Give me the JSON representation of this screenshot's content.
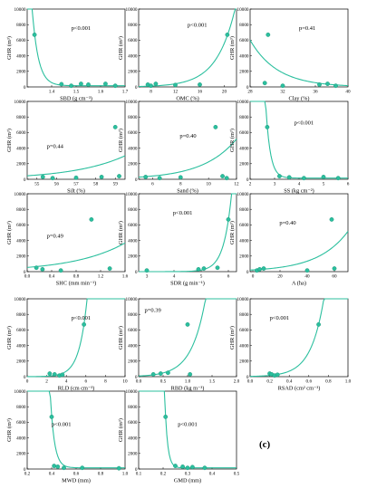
{
  "panel_label": "(c)",
  "colors": {
    "series": "#2bbf9e",
    "series_edge": "#1a8f74",
    "axes": "#000000"
  },
  "chart_data": [
    {
      "type": "scatter",
      "id": "sbd",
      "xlabel": "SBD (g cm⁻³)",
      "ylabel": "GHR (m³)",
      "xlim": [
        1.3,
        1.7
      ],
      "ylim": [
        0,
        10000
      ],
      "xticks": [
        1.4,
        1.5,
        1.6,
        1.7
      ],
      "xtick_labels": [
        "1.4",
        "1.5",
        "1.6",
        "1.7"
      ],
      "yticks": [
        0,
        2000,
        4000,
        6000,
        8000,
        10000
      ],
      "annotation": "p<0.001",
      "points": [
        [
          1.33,
          6700
        ],
        [
          1.44,
          350
        ],
        [
          1.48,
          150
        ],
        [
          1.52,
          400
        ],
        [
          1.55,
          300
        ],
        [
          1.62,
          400
        ],
        [
          1.66,
          150
        ]
      ],
      "fit": {
        "kind": "exp_decay",
        "a": 6700,
        "b": 40,
        "x0": 1.33,
        "c": 150
      }
    },
    {
      "type": "scatter",
      "id": "omc",
      "xlabel": "OMC (%)",
      "ylabel": "GHR (m³)",
      "xlim": [
        6,
        22
      ],
      "ylim": [
        0,
        10000
      ],
      "xticks": [
        8,
        12,
        16,
        20
      ],
      "xtick_labels": [
        "8",
        "12",
        "16",
        "20"
      ],
      "yticks": [
        0,
        2000,
        4000,
        6000,
        8000,
        10000
      ],
      "annotation": "p<0.001",
      "points": [
        [
          7.5,
          300
        ],
        [
          8.0,
          150
        ],
        [
          8.8,
          400
        ],
        [
          12.0,
          250
        ],
        [
          16.0,
          300
        ],
        [
          20.5,
          6700
        ]
      ],
      "fit": {
        "kind": "exp_growth",
        "a": 6600,
        "b": 0.33,
        "x0": 20.5,
        "c": 0
      }
    },
    {
      "type": "scatter",
      "id": "clay",
      "xlabel": "Clay (%)",
      "ylabel": "GHR (m³)",
      "xlim": [
        28,
        40
      ],
      "ylim": [
        0,
        10000
      ],
      "xticks": [
        28,
        32,
        36,
        40
      ],
      "xtick_labels": [
        "28",
        "32",
        "36",
        "40"
      ],
      "yticks": [
        0,
        2000,
        4000,
        6000,
        8000,
        10000
      ],
      "annotation": "p=0.41",
      "points": [
        [
          30.2,
          6700
        ],
        [
          29.8,
          500
        ],
        [
          32.0,
          150
        ],
        [
          36.5,
          300
        ],
        [
          37.5,
          400
        ],
        [
          38.5,
          150
        ]
      ],
      "fit": {
        "kind": "exp_decay",
        "a": 3300,
        "b": 0.3,
        "x0": 30,
        "c": 0
      }
    },
    {
      "type": "scatter",
      "id": "silt",
      "xlabel": "Silt (%)",
      "ylabel": "GHR (m³)",
      "xlim": [
        54.5,
        59.5
      ],
      "ylim": [
        0,
        10000
      ],
      "xticks": [
        55,
        56,
        57,
        58,
        59
      ],
      "xtick_labels": [
        "55",
        "56",
        "57",
        "58",
        "59"
      ],
      "yticks": [
        0,
        2000,
        4000,
        6000,
        8000,
        10000
      ],
      "annotation": "p=0.44",
      "points": [
        [
          55.3,
          300
        ],
        [
          55.8,
          150
        ],
        [
          57.0,
          200
        ],
        [
          58.3,
          300
        ],
        [
          59.0,
          6700
        ],
        [
          59.2,
          400
        ]
      ],
      "fit": {
        "kind": "exp_growth",
        "a": 2800,
        "b": 0.38,
        "x0": 59.3,
        "c": 0
      }
    },
    {
      "type": "scatter",
      "id": "sand",
      "xlabel": "Sand (%)",
      "ylabel": "GHR (m³)",
      "xlim": [
        5,
        12
      ],
      "ylim": [
        0,
        10000
      ],
      "xticks": [
        6,
        8,
        10,
        12
      ],
      "xtick_labels": [
        "6",
        "8",
        "10",
        "12"
      ],
      "yticks": [
        0,
        2000,
        4000,
        6000,
        8000,
        10000
      ],
      "annotation": "p=0.40",
      "points": [
        [
          5.5,
          300
        ],
        [
          6.5,
          150
        ],
        [
          8.0,
          250
        ],
        [
          10.5,
          6700
        ],
        [
          11.0,
          400
        ],
        [
          11.3,
          150
        ]
      ],
      "fit": {
        "kind": "exp_growth",
        "a": 3400,
        "b": 0.42,
        "x0": 11.0,
        "c": 0
      }
    },
    {
      "type": "scatter",
      "id": "ss",
      "xlabel": "SS (kg cm⁻²)",
      "ylabel": "GHR (m³)",
      "xlim": [
        2,
        6
      ],
      "ylim": [
        0,
        10000
      ],
      "xticks": [
        2,
        3,
        4,
        5,
        6
      ],
      "xtick_labels": [
        "2",
        "3",
        "4",
        "5",
        "6"
      ],
      "yticks": [
        0,
        2000,
        4000,
        6000,
        8000,
        10000
      ],
      "annotation": "p<0.001",
      "points": [
        [
          2.7,
          6700
        ],
        [
          3.2,
          400
        ],
        [
          3.6,
          250
        ],
        [
          4.2,
          150
        ],
        [
          5.0,
          300
        ],
        [
          5.6,
          150
        ]
      ],
      "fit": {
        "kind": "exp_decay",
        "a": 6700,
        "b": 5.5,
        "x0": 2.7,
        "c": 150
      }
    },
    {
      "type": "scatter",
      "id": "shc",
      "xlabel": "SHC (mm min⁻¹)",
      "ylabel": "GHR (m³)",
      "xlim": [
        0,
        1.6
      ],
      "ylim": [
        0,
        10000
      ],
      "xticks": [
        0.0,
        0.4,
        0.8,
        1.2,
        1.6
      ],
      "xtick_labels": [
        "0.0",
        "0.4",
        "0.8",
        "1.2",
        "1.6"
      ],
      "yticks": [
        0,
        2000,
        4000,
        6000,
        8000,
        10000
      ],
      "annotation": "p=0.49",
      "points": [
        [
          0.15,
          500
        ],
        [
          0.25,
          300
        ],
        [
          0.55,
          150
        ],
        [
          1.05,
          6700
        ],
        [
          1.35,
          400
        ]
      ],
      "fit": {
        "kind": "exp_growth",
        "a": 2900,
        "b": 1.2,
        "x0": 1.4,
        "c": 0
      }
    },
    {
      "type": "scatter",
      "id": "sdr",
      "xlabel": "SDR (g min⁻¹)",
      "ylabel": "GHR (m³)",
      "xlim": [
        2.7,
        6.3
      ],
      "ylim": [
        0,
        10000
      ],
      "xticks": [
        3,
        4,
        5,
        6
      ],
      "xtick_labels": [
        "3",
        "4",
        "5",
        "6"
      ],
      "yticks": [
        0,
        2000,
        4000,
        6000,
        8000,
        10000
      ],
      "annotation": "p<0.001",
      "points": [
        [
          3.0,
          150
        ],
        [
          4.9,
          300
        ],
        [
          5.1,
          400
        ],
        [
          5.6,
          500
        ],
        [
          6.0,
          6700
        ]
      ],
      "fit": {
        "kind": "exp_growth",
        "a": 6600,
        "b": 3.5,
        "x0": 6.0,
        "c": 0
      }
    },
    {
      "type": "scatter",
      "id": "a",
      "xlabel": "A (ha)",
      "ylabel": "GHR (m³)",
      "xlim": [
        -2,
        70
      ],
      "ylim": [
        0,
        10000
      ],
      "xticks": [
        0,
        20,
        40,
        60
      ],
      "xtick_labels": [
        "0",
        "20",
        "40",
        "60"
      ],
      "yticks": [
        0,
        2000,
        4000,
        6000,
        8000,
        10000
      ],
      "annotation": "p=0.40",
      "points": [
        [
          3,
          150
        ],
        [
          5,
          300
        ],
        [
          8,
          400
        ],
        [
          40,
          150
        ],
        [
          58,
          6700
        ],
        [
          60,
          400
        ]
      ],
      "fit": {
        "kind": "exp_growth",
        "a": 3300,
        "b": 0.045,
        "x0": 60,
        "c": 0
      }
    },
    {
      "type": "scatter",
      "id": "rld",
      "xlabel": "RLD (cm cm⁻³)",
      "ylabel": "GHR (m³)",
      "xlim": [
        0,
        10
      ],
      "ylim": [
        0,
        10000
      ],
      "xticks": [
        0,
        2,
        4,
        6,
        8,
        10
      ],
      "xtick_labels": [
        "0",
        "2",
        "4",
        "6",
        "8",
        "10"
      ],
      "yticks": [
        0,
        2000,
        4000,
        6000,
        8000,
        10000
      ],
      "annotation": "p<0.001",
      "points": [
        [
          2.3,
          400
        ],
        [
          2.8,
          300
        ],
        [
          3.3,
          150
        ],
        [
          3.6,
          250
        ],
        [
          5.8,
          6700
        ]
      ],
      "fit": {
        "kind": "exp_growth",
        "a": 6700,
        "b": 1.25,
        "x0": 5.8,
        "c": 0
      }
    },
    {
      "type": "scatter",
      "id": "rbd",
      "xlabel": "RBD (kg m⁻³)",
      "ylabel": "GHR (m³)",
      "xlim": [
        0,
        2
      ],
      "ylim": [
        0,
        10000
      ],
      "xticks": [
        0.0,
        0.5,
        1.0,
        1.5,
        2.0
      ],
      "xtick_labels": [
        "0.0",
        "0.5",
        "1.0",
        "1.5",
        "2.0"
      ],
      "yticks": [
        0,
        2000,
        4000,
        6000,
        8000,
        10000
      ],
      "annotation": "p=0.39",
      "points": [
        [
          0.3,
          300
        ],
        [
          0.45,
          400
        ],
        [
          0.6,
          500
        ],
        [
          1.0,
          6700
        ],
        [
          1.05,
          300
        ]
      ],
      "fit": {
        "kind": "exp_growth",
        "a": 3300,
        "b": 3.5,
        "x0": 1.05,
        "c": 0
      }
    },
    {
      "type": "scatter",
      "id": "rsad",
      "xlabel": "RSAD (cm² cm⁻³)",
      "ylabel": "GHR (m³)",
      "xlim": [
        0,
        1
      ],
      "ylim": [
        0,
        10000
      ],
      "xticks": [
        0.0,
        0.2,
        0.4,
        0.6,
        0.8,
        1.0
      ],
      "xtick_labels": [
        "0.0",
        "0.2",
        "0.4",
        "0.6",
        "0.8",
        "1.0"
      ],
      "yticks": [
        0,
        2000,
        4000,
        6000,
        8000,
        10000
      ],
      "annotation": "p<0.001",
      "points": [
        [
          0.2,
          400
        ],
        [
          0.22,
          300
        ],
        [
          0.25,
          150
        ],
        [
          0.28,
          250
        ],
        [
          0.7,
          6700
        ]
      ],
      "fit": {
        "kind": "exp_growth",
        "a": 6700,
        "b": 7.5,
        "x0": 0.7,
        "c": 0
      }
    },
    {
      "type": "scatter",
      "id": "mwd",
      "xlabel": "MWD (mm)",
      "ylabel": "GHR (m³)",
      "xlim": [
        0.2,
        1.0
      ],
      "ylim": [
        0,
        10000
      ],
      "xticks": [
        0.2,
        0.4,
        0.6,
        0.8,
        1.0
      ],
      "xtick_labels": [
        "0.2",
        "0.4",
        "0.6",
        "0.8",
        "1.0"
      ],
      "yticks": [
        0,
        2000,
        4000,
        6000,
        8000,
        10000
      ],
      "annotation": "p<0.001",
      "points": [
        [
          0.4,
          6700
        ],
        [
          0.42,
          400
        ],
        [
          0.45,
          300
        ],
        [
          0.5,
          150
        ],
        [
          0.65,
          150
        ],
        [
          0.95,
          100
        ]
      ],
      "fit": {
        "kind": "exp_decay",
        "a": 6700,
        "b": 30,
        "x0": 0.4,
        "c": 150
      }
    },
    {
      "type": "scatter",
      "id": "gmd",
      "xlabel": "GMD (mm)",
      "ylabel": "GHR (m³)",
      "xlim": [
        0.1,
        0.5
      ],
      "ylim": [
        0,
        10000
      ],
      "xticks": [
        0.1,
        0.2,
        0.3,
        0.4,
        0.5
      ],
      "xtick_labels": [
        "0.1",
        "0.2",
        "0.3",
        "0.4",
        "0.5"
      ],
      "yticks": [
        0,
        2000,
        4000,
        6000,
        8000,
        10000
      ],
      "annotation": "p<0.001",
      "points": [
        [
          0.21,
          6700
        ],
        [
          0.25,
          400
        ],
        [
          0.28,
          300
        ],
        [
          0.3,
          150
        ],
        [
          0.32,
          250
        ],
        [
          0.37,
          150
        ]
      ],
      "fit": {
        "kind": "exp_decay",
        "a": 6700,
        "b": 90,
        "x0": 0.21,
        "c": 150
      }
    }
  ]
}
